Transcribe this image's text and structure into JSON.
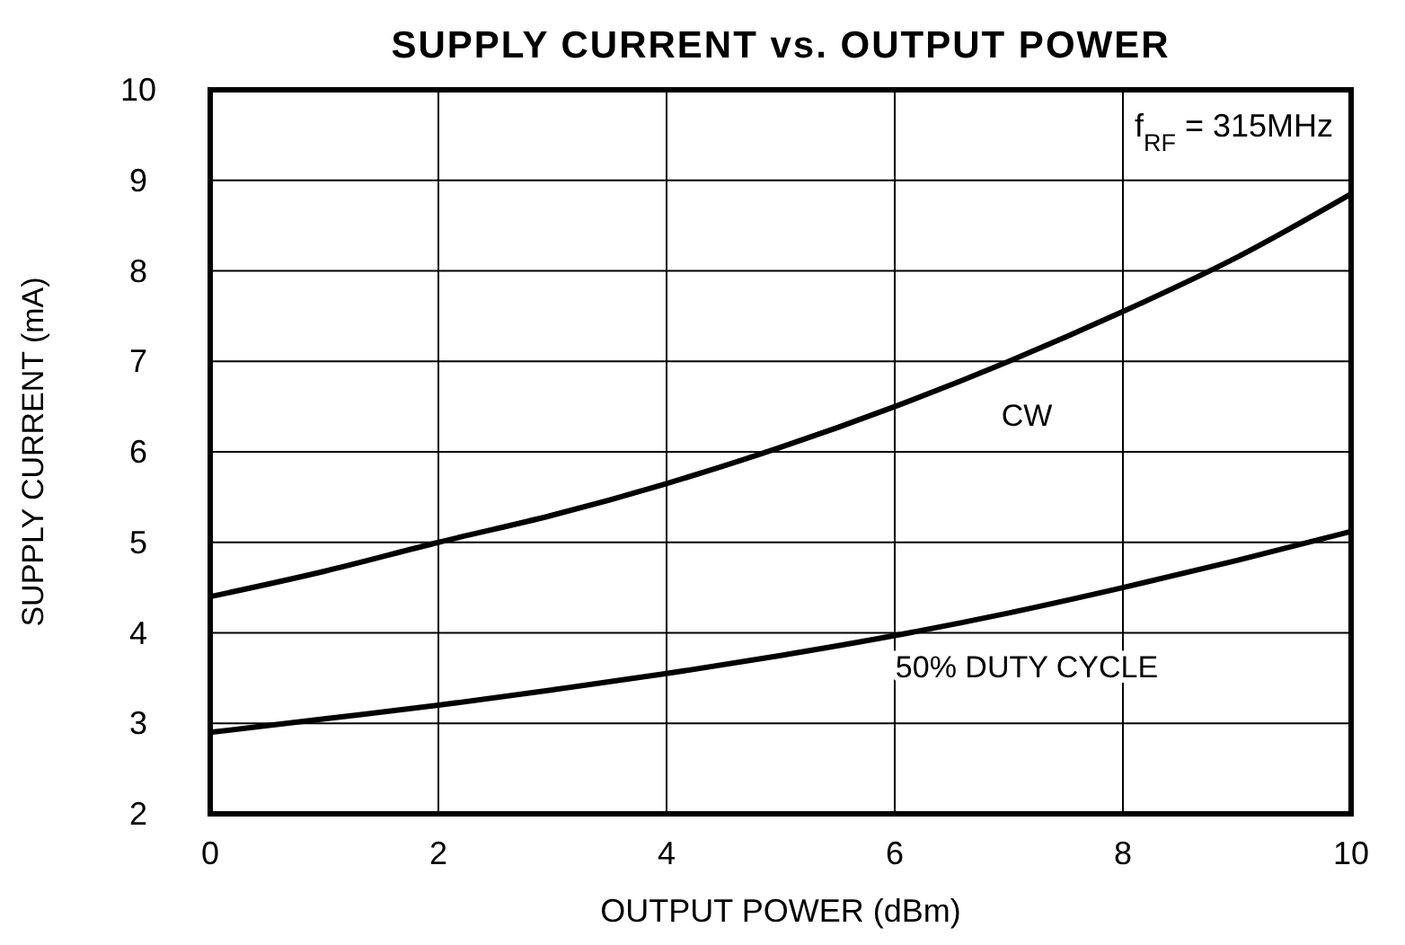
{
  "chart_data": {
    "type": "line",
    "title": "SUPPLY CURRENT vs. OUTPUT POWER",
    "xlabel": "OUTPUT POWER (dBm)",
    "ylabel": "SUPPLY CURRENT (mA)",
    "annotations": [
      "f$_{RF}$ = 315MHz"
    ],
    "x": [
      0,
      1,
      2,
      3,
      4,
      5,
      6,
      7,
      8,
      9,
      10
    ],
    "series": [
      {
        "name": "CW",
        "color": "#000000",
        "values": [
          4.4,
          4.68,
          5.0,
          5.3,
          5.65,
          6.05,
          6.5,
          7.0,
          7.55,
          8.15,
          8.85
        ]
      },
      {
        "name": "50% DUTY CYCLE",
        "color": "#000000",
        "values": [
          2.9,
          3.05,
          3.2,
          3.37,
          3.55,
          3.75,
          3.97,
          4.22,
          4.5,
          4.8,
          5.12
        ]
      }
    ],
    "xlim": [
      0,
      10
    ],
    "xticks": [
      0,
      2,
      4,
      6,
      8,
      10
    ],
    "ylim": [
      2,
      10
    ],
    "yticks": [
      2,
      3,
      4,
      5,
      6,
      7,
      8,
      9,
      10
    ],
    "grid": true,
    "marker": "none",
    "line_style": "solid"
  }
}
